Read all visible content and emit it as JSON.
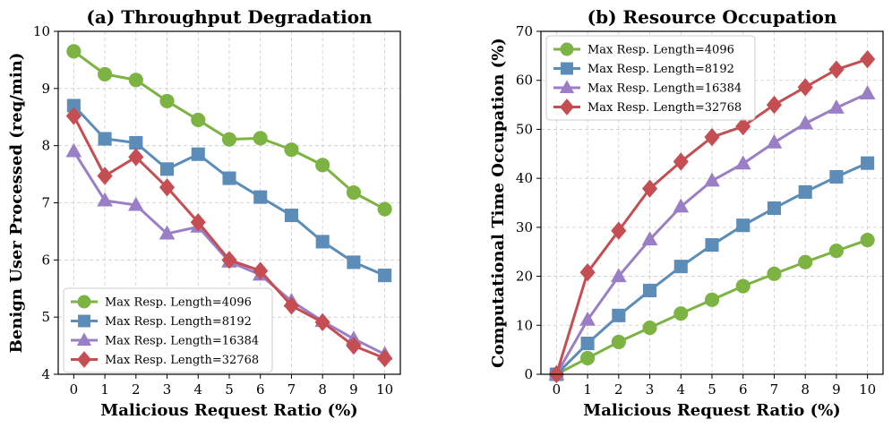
{
  "chart_data": [
    {
      "type": "line",
      "title": "(a) Throughput Degradation",
      "xlabel": "Malicious Request Ratio (%)",
      "ylabel": "Benign User Processed (req/min)",
      "x": [
        0,
        1,
        2,
        3,
        4,
        5,
        6,
        7,
        8,
        9,
        10
      ],
      "xlim": [
        -0.5,
        10.5
      ],
      "ylim": [
        4,
        10
      ],
      "yticks": [
        4,
        5,
        6,
        7,
        8,
        9,
        10
      ],
      "grid": true,
      "legend_position": "bottom-left",
      "series": [
        {
          "name": "Max Resp. Length=4096",
          "color": "#7cb342",
          "marker": "circle",
          "values": [
            9.65,
            9.25,
            9.15,
            8.78,
            8.45,
            8.11,
            8.13,
            7.93,
            7.66,
            7.18,
            6.89
          ]
        },
        {
          "name": "Max Resp. Length=8192",
          "color": "#5b8db8",
          "marker": "square",
          "values": [
            8.7,
            8.12,
            8.05,
            7.59,
            7.85,
            7.43,
            7.1,
            6.78,
            6.32,
            5.96,
            5.73
          ]
        },
        {
          "name": "Max Resp. Length=16384",
          "color": "#9a7fc6",
          "marker": "triangle",
          "values": [
            7.9,
            7.04,
            6.96,
            6.46,
            6.58,
            5.97,
            5.74,
            5.28,
            4.93,
            4.62,
            4.35
          ]
        },
        {
          "name": "Max Resp. Length=32768",
          "color": "#c44e52",
          "marker": "diamond",
          "values": [
            8.52,
            7.47,
            7.8,
            7.27,
            6.66,
            6.0,
            5.81,
            5.2,
            4.91,
            4.5,
            4.28
          ]
        }
      ]
    },
    {
      "type": "line",
      "title": "(b) Resource Occupation",
      "xlabel": "Malicious Request Ratio (%)",
      "ylabel": "Computational Time Occupation (%)",
      "x": [
        0,
        1,
        2,
        3,
        4,
        5,
        6,
        7,
        8,
        9,
        10
      ],
      "xlim": [
        -0.5,
        10.5
      ],
      "ylim": [
        0,
        70
      ],
      "yticks": [
        0,
        10,
        20,
        30,
        40,
        50,
        60,
        70
      ],
      "grid": true,
      "legend_position": "top-left",
      "series": [
        {
          "name": "Max Resp. Length=4096",
          "color": "#7cb342",
          "marker": "circle",
          "values": [
            0,
            3.3,
            6.6,
            9.5,
            12.4,
            15.2,
            18.0,
            20.5,
            22.9,
            25.2,
            27.4
          ]
        },
        {
          "name": "Max Resp. Length=8192",
          "color": "#5b8db8",
          "marker": "square",
          "values": [
            0,
            6.3,
            12.0,
            17.1,
            22.0,
            26.4,
            30.4,
            33.9,
            37.2,
            40.3,
            43.1
          ]
        },
        {
          "name": "Max Resp. Length=16384",
          "color": "#9a7fc6",
          "marker": "triangle",
          "values": [
            0,
            11.1,
            20.0,
            27.5,
            34.2,
            39.5,
            43.0,
            47.3,
            51.2,
            54.4,
            57.3
          ]
        },
        {
          "name": "Max Resp. Length=32768",
          "color": "#c44e52",
          "marker": "diamond",
          "values": [
            0,
            20.8,
            29.3,
            37.9,
            43.4,
            48.4,
            50.6,
            55.0,
            58.6,
            62.2,
            64.3
          ]
        }
      ]
    }
  ]
}
